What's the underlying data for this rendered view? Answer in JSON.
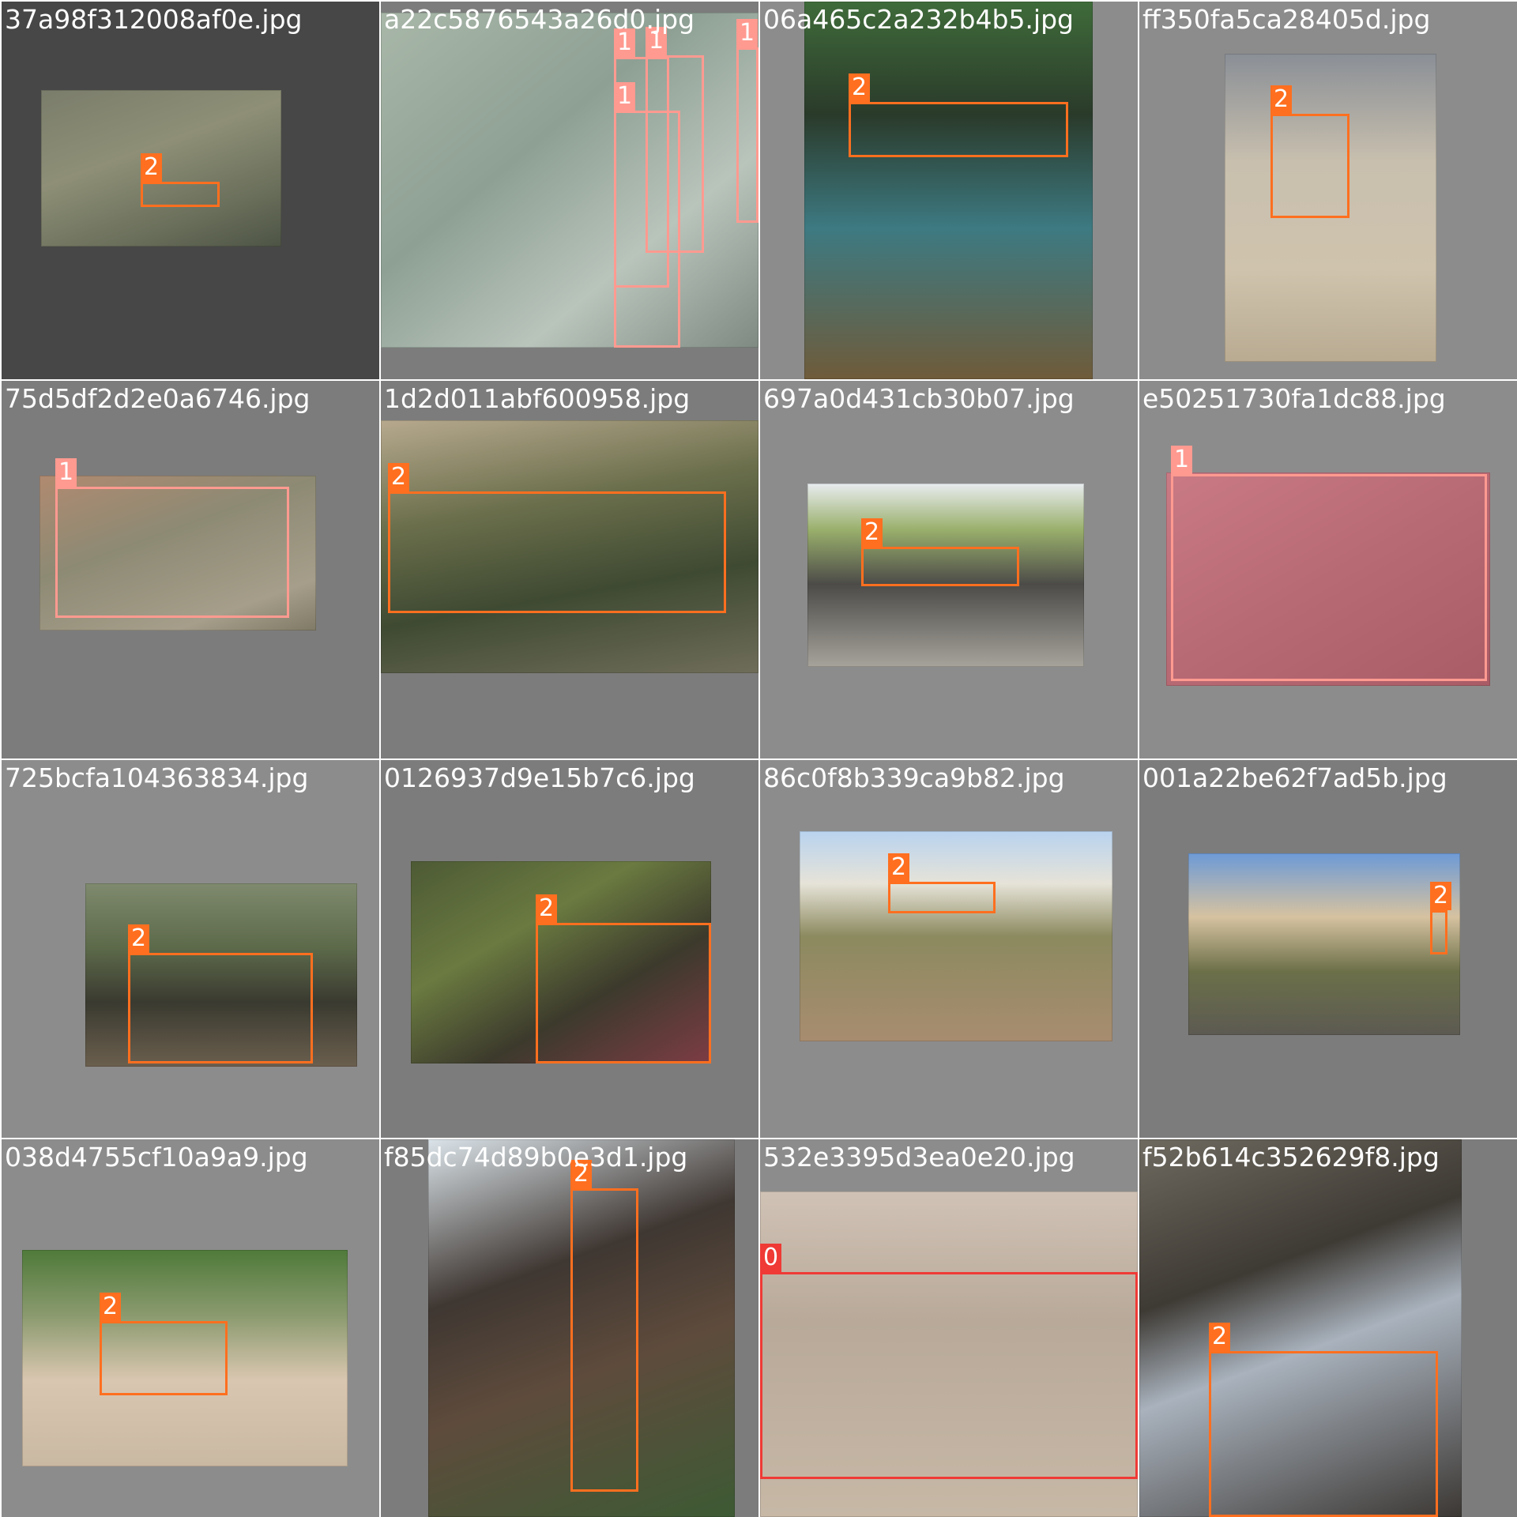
{
  "tiles": [
    {
      "filename": "37a98f312008af0e.jpg",
      "labels": [
        "2"
      ]
    },
    {
      "filename": "a22c5876543a26d0.jpg",
      "labels": [
        "1",
        "1",
        "1",
        "1"
      ]
    },
    {
      "filename": "06a465c2a232b4b5.jpg",
      "labels": [
        "2"
      ]
    },
    {
      "filename": "ff350fa5ca28405d.jpg",
      "labels": [
        "2"
      ]
    },
    {
      "filename": "75d5df2d2e0a6746.jpg",
      "labels": [
        "1"
      ]
    },
    {
      "filename": "1d2d011abf600958.jpg",
      "labels": [
        "2"
      ]
    },
    {
      "filename": "697a0d431cb30b07.jpg",
      "labels": [
        "2"
      ]
    },
    {
      "filename": "e50251730fa1dc88.jpg",
      "labels": [
        "1"
      ]
    },
    {
      "filename": "725bcfa104363834.jpg",
      "labels": [
        "2"
      ]
    },
    {
      "filename": "0126937d9e15b7c6.jpg",
      "labels": [
        "2"
      ]
    },
    {
      "filename": "86c0f8b339ca9b82.jpg",
      "labels": [
        "2"
      ]
    },
    {
      "filename": "001a22be62f7ad5b.jpg",
      "labels": [
        "2"
      ]
    },
    {
      "filename": "038d4755cf10a9a9.jpg",
      "labels": [
        "2"
      ]
    },
    {
      "filename": "f85dc74d89b0e3d1.jpg",
      "labels": [
        "2"
      ]
    },
    {
      "filename": "532e3395d3ea0e20.jpg",
      "labels": [
        "0"
      ]
    },
    {
      "filename": "f52b614c352629f8.jpg",
      "labels": [
        "2"
      ]
    }
  ],
  "colors": {
    "class_0": "#ef3a35",
    "class_1": "#ff9a90",
    "class_2": "#ff6f1f",
    "tile_bg_dark": "#474747",
    "tile_bg_mid": "#7c7c7c",
    "tile_bg_light": "#8c8c8c"
  }
}
